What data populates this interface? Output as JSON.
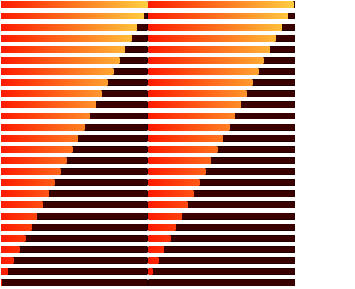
{
  "progress_panel": {
    "colors": {
      "track": "#3a0000",
      "fill_start": "#ff1a00",
      "fill_end": "#ffd040"
    },
    "left_column": {
      "values": [
        1.0,
        0.97,
        0.93,
        0.89,
        0.85,
        0.81,
        0.77,
        0.73,
        0.69,
        0.65,
        0.61,
        0.57,
        0.53,
        0.49,
        0.45,
        0.41,
        0.37,
        0.33,
        0.29,
        0.25,
        0.21,
        0.17,
        0.13,
        0.09,
        0.05,
        0.01
      ]
    },
    "right_column": {
      "values": [
        0.99,
        0.95,
        0.91,
        0.87,
        0.83,
        0.79,
        0.75,
        0.71,
        0.67,
        0.63,
        0.59,
        0.55,
        0.51,
        0.47,
        0.43,
        0.39,
        0.35,
        0.31,
        0.27,
        0.23,
        0.19,
        0.15,
        0.11,
        0.07,
        0.03,
        0.0
      ]
    }
  }
}
